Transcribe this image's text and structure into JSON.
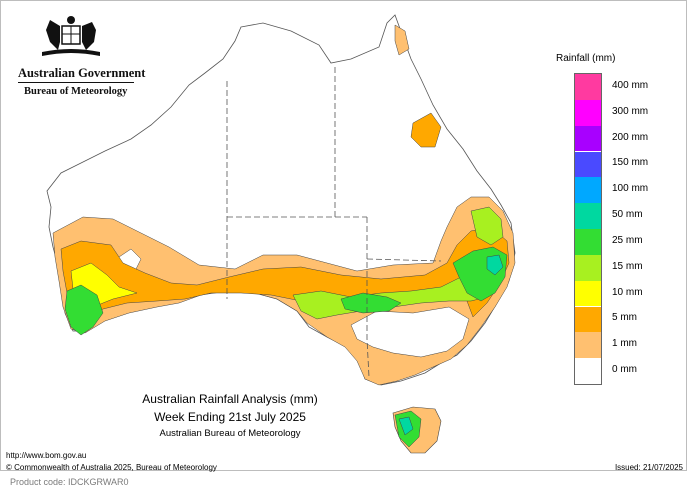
{
  "government": {
    "title": "Australian Government",
    "subtitle": "Bureau of Meteorology"
  },
  "map": {
    "title_line1": "Australian Rainfall Analysis (mm)",
    "title_line2": "Week Ending 21st July 2025",
    "title_line3": "Australian Bureau of Meteorology"
  },
  "legend": {
    "title": "Rainfall (mm)",
    "items": [
      {
        "label": "400 mm",
        "color": "#ff3aa0"
      },
      {
        "label": "300 mm",
        "color": "#ff00ff"
      },
      {
        "label": "200 mm",
        "color": "#a800ff"
      },
      {
        "label": "150 mm",
        "color": "#4a4aff"
      },
      {
        "label": "100 mm",
        "color": "#00a8ff"
      },
      {
        "label": "50 mm",
        "color": "#00d8a0"
      },
      {
        "label": "25 mm",
        "color": "#33dd33"
      },
      {
        "label": "15 mm",
        "color": "#a8f020"
      },
      {
        "label": "10 mm",
        "color": "#ffff00"
      },
      {
        "label": "5 mm",
        "color": "#ffa800"
      },
      {
        "label": "1 mm",
        "color": "#ffc070"
      },
      {
        "label": "0 mm",
        "color": "#ffffff"
      }
    ]
  },
  "footer": {
    "url": "http://www.bom.gov.au",
    "copyright": "© Commonwealth of Australia 2025, Bureau of Meteorology",
    "issued": "Issued: 21/07/2025",
    "product_code": "Product code: IDCKGRWAR0"
  }
}
